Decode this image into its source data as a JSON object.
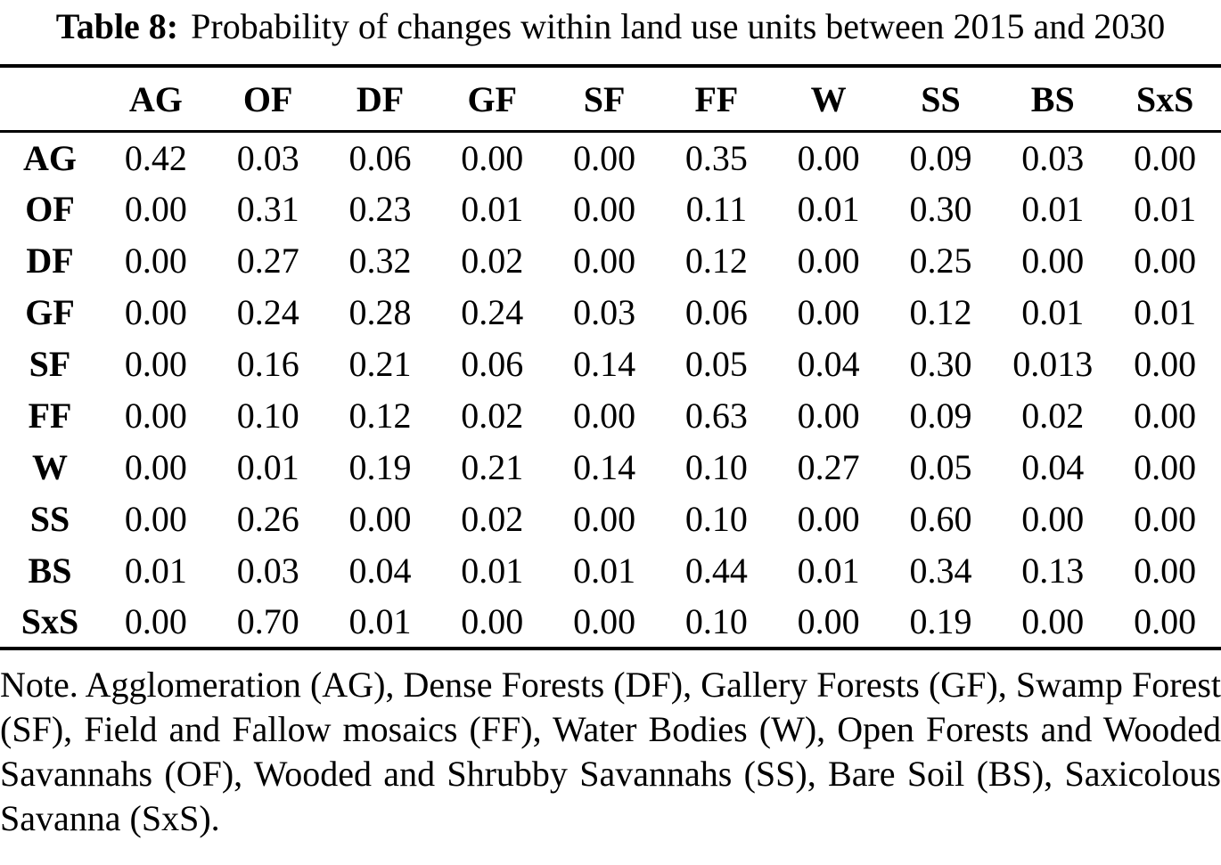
{
  "title": {
    "label": "Table 8:",
    "text": "Probability of changes within land use units between 2015 and 2030"
  },
  "table": {
    "columns": [
      "AG",
      "OF",
      "DF",
      "GF",
      "SF",
      "FF",
      "W",
      "SS",
      "BS",
      "SxS"
    ],
    "rows": [
      {
        "label": "AG",
        "values": [
          "0.42",
          "0.03",
          "0.06",
          "0.00",
          "0.00",
          "0.35",
          "0.00",
          "0.09",
          "0.03",
          "0.00"
        ]
      },
      {
        "label": "OF",
        "values": [
          "0.00",
          "0.31",
          "0.23",
          "0.01",
          "0.00",
          "0.11",
          "0.01",
          "0.30",
          "0.01",
          "0.01"
        ]
      },
      {
        "label": "DF",
        "values": [
          "0.00",
          "0.27",
          "0.32",
          "0.02",
          "0.00",
          "0.12",
          "0.00",
          "0.25",
          "0.00",
          "0.00"
        ]
      },
      {
        "label": "GF",
        "values": [
          "0.00",
          "0.24",
          "0.28",
          "0.24",
          "0.03",
          "0.06",
          "0.00",
          "0.12",
          "0.01",
          "0.01"
        ]
      },
      {
        "label": "SF",
        "values": [
          "0.00",
          "0.16",
          "0.21",
          "0.06",
          "0.14",
          "0.05",
          "0.04",
          "0.30",
          "0.013",
          "0.00"
        ]
      },
      {
        "label": "FF",
        "values": [
          "0.00",
          "0.10",
          "0.12",
          "0.02",
          "0.00",
          "0.63",
          "0.00",
          "0.09",
          "0.02",
          "0.00"
        ]
      },
      {
        "label": "W",
        "values": [
          "0.00",
          "0.01",
          "0.19",
          "0.21",
          "0.14",
          "0.10",
          "0.27",
          "0.05",
          "0.04",
          "0.00"
        ]
      },
      {
        "label": "SS",
        "values": [
          "0.00",
          "0.26",
          "0.00",
          "0.02",
          "0.00",
          "0.10",
          "0.00",
          "0.60",
          "0.00",
          "0.00"
        ]
      },
      {
        "label": "BS",
        "values": [
          "0.01",
          "0.03",
          "0.04",
          "0.01",
          "0.01",
          "0.44",
          "0.01",
          "0.34",
          "0.13",
          "0.00"
        ]
      },
      {
        "label": "SxS",
        "values": [
          "0.00",
          "0.70",
          "0.01",
          "0.00",
          "0.00",
          "0.10",
          "0.00",
          "0.19",
          "0.00",
          "0.00"
        ]
      }
    ]
  },
  "note": "Note. Agglomeration (AG), Dense Forests (DF), Gallery Forests (GF), Swamp Forest (SF), Field and Fallow mosaics (FF), Water Bodies (W), Open Forests and Wooded Savannahs (OF), Wooded and Shrubby Savannahs (SS), Bare Soil (BS), Saxicolous Savanna (SxS).",
  "colors": {
    "text": "#000000",
    "background": "#ffffff"
  }
}
